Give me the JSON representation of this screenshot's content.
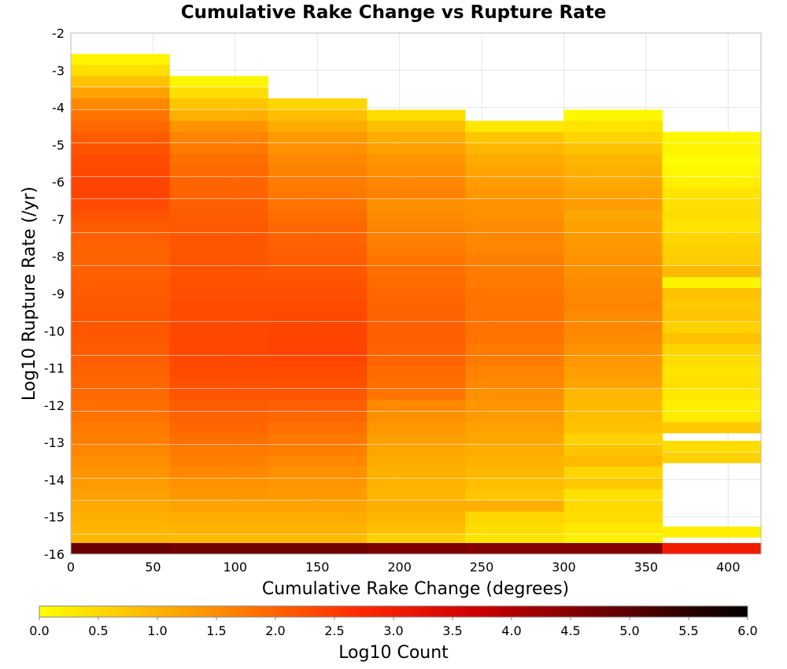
{
  "chart_data": {
    "type": "heatmap",
    "title": "Cumulative Rake Change vs Rupture Rate",
    "xlabel": "Cumulative Rake Change (degrees)",
    "ylabel": "Log10 Rupture Rate (/yr)",
    "xlim": [
      0,
      420
    ],
    "ylim": [
      -16,
      -2
    ],
    "x_ticks": [
      "0",
      "50",
      "100",
      "150",
      "200",
      "250",
      "300",
      "350",
      "400"
    ],
    "y_ticks": [
      "-2",
      "-3",
      "-4",
      "-5",
      "-6",
      "-7",
      "-8",
      "-9",
      "-10",
      "-11",
      "-12",
      "-13",
      "-14",
      "-15",
      "-16"
    ],
    "grid": true,
    "x_bin_width": 60,
    "y_bin_height": 0.2857,
    "colorbar": {
      "label": "Log10 Count",
      "range": [
        0.0,
        6.0
      ],
      "ticks": [
        "0.0",
        "0.5",
        "1.0",
        "1.5",
        "2.0",
        "2.5",
        "3.0",
        "3.5",
        "4.0",
        "4.5",
        "5.0",
        "5.5",
        "6.0"
      ],
      "colors": [
        "#ffff00",
        "#ff8c00",
        "#ff2a00",
        "#cc0000",
        "#000000"
      ]
    },
    "columns": [
      {
        "x_range": [
          0,
          60
        ],
        "cells": [
          [
            -2.7,
            0.15
          ],
          [
            -3.0,
            0.4
          ],
          [
            -3.3,
            0.8
          ],
          [
            -3.6,
            1.2
          ],
          [
            -3.9,
            1.55
          ],
          [
            -4.2,
            1.8
          ],
          [
            -4.5,
            1.95
          ],
          [
            -4.8,
            2.1
          ],
          [
            -5.1,
            2.2
          ],
          [
            -5.4,
            2.28
          ],
          [
            -5.7,
            2.33
          ],
          [
            -6.0,
            2.38
          ],
          [
            -6.3,
            2.4
          ],
          [
            -6.6,
            2.3
          ],
          [
            -6.9,
            2.2
          ],
          [
            -7.2,
            2.1
          ],
          [
            -7.5,
            2.05
          ],
          [
            -7.8,
            2.0
          ],
          [
            -8.1,
            2.0
          ],
          [
            -8.4,
            2.03
          ],
          [
            -8.7,
            2.08
          ],
          [
            -9.0,
            2.1
          ],
          [
            -9.3,
            2.13
          ],
          [
            -9.6,
            2.15
          ],
          [
            -9.9,
            2.15
          ],
          [
            -10.2,
            2.12
          ],
          [
            -10.5,
            2.1
          ],
          [
            -10.8,
            2.05
          ],
          [
            -11.1,
            2.0
          ],
          [
            -11.4,
            1.98
          ],
          [
            -11.7,
            1.92
          ],
          [
            -12.0,
            1.86
          ],
          [
            -12.3,
            1.8
          ],
          [
            -12.6,
            1.72
          ],
          [
            -12.9,
            1.65
          ],
          [
            -13.2,
            1.56
          ],
          [
            -13.5,
            1.48
          ],
          [
            -13.8,
            1.4
          ],
          [
            -14.1,
            1.32
          ],
          [
            -14.4,
            1.22
          ],
          [
            -14.7,
            1.12
          ],
          [
            -15.0,
            1.05
          ],
          [
            -15.3,
            0.98
          ],
          [
            -15.6,
            0.92
          ],
          [
            -15.85,
            4.8
          ]
        ]
      },
      {
        "x_range": [
          60,
          120
        ],
        "cells": [
          [
            -3.3,
            0.15
          ],
          [
            -3.6,
            0.45
          ],
          [
            -3.9,
            0.75
          ],
          [
            -4.2,
            1.05
          ],
          [
            -4.5,
            1.4
          ],
          [
            -4.8,
            1.6
          ],
          [
            -5.1,
            1.75
          ],
          [
            -5.4,
            1.85
          ],
          [
            -5.7,
            1.92
          ],
          [
            -6.0,
            1.98
          ],
          [
            -6.3,
            2.0
          ],
          [
            -6.6,
            2.05
          ],
          [
            -6.9,
            2.1
          ],
          [
            -7.2,
            2.12
          ],
          [
            -7.5,
            2.15
          ],
          [
            -7.8,
            2.15
          ],
          [
            -8.1,
            2.18
          ],
          [
            -8.4,
            2.2
          ],
          [
            -8.7,
            2.22
          ],
          [
            -9.0,
            2.25
          ],
          [
            -9.3,
            2.28
          ],
          [
            -9.6,
            2.3
          ],
          [
            -9.9,
            2.32
          ],
          [
            -10.2,
            2.35
          ],
          [
            -10.5,
            2.35
          ],
          [
            -10.8,
            2.32
          ],
          [
            -11.1,
            2.3
          ],
          [
            -11.4,
            2.25
          ],
          [
            -11.7,
            2.18
          ],
          [
            -12.0,
            2.1
          ],
          [
            -12.3,
            2.02
          ],
          [
            -12.6,
            1.95
          ],
          [
            -12.9,
            1.85
          ],
          [
            -13.2,
            1.75
          ],
          [
            -13.5,
            1.65
          ],
          [
            -13.8,
            1.55
          ],
          [
            -14.1,
            1.45
          ],
          [
            -14.4,
            1.35
          ],
          [
            -14.7,
            1.2
          ],
          [
            -15.0,
            1.1
          ],
          [
            -15.3,
            1.0
          ],
          [
            -15.6,
            0.9
          ],
          [
            -15.85,
            4.7
          ]
        ]
      },
      {
        "x_range": [
          120,
          180
        ],
        "cells": [
          [
            -3.9,
            0.55
          ],
          [
            -4.2,
            0.85
          ],
          [
            -4.5,
            1.1
          ],
          [
            -4.8,
            1.3
          ],
          [
            -5.1,
            1.45
          ],
          [
            -5.4,
            1.55
          ],
          [
            -5.7,
            1.62
          ],
          [
            -6.0,
            1.7
          ],
          [
            -6.3,
            1.75
          ],
          [
            -6.6,
            1.8
          ],
          [
            -6.9,
            1.88
          ],
          [
            -7.2,
            1.95
          ],
          [
            -7.5,
            2.0
          ],
          [
            -7.8,
            2.05
          ],
          [
            -8.1,
            2.1
          ],
          [
            -8.4,
            2.15
          ],
          [
            -8.7,
            2.2
          ],
          [
            -9.0,
            2.25
          ],
          [
            -9.3,
            2.3
          ],
          [
            -9.6,
            2.33
          ],
          [
            -9.9,
            2.36
          ],
          [
            -10.2,
            2.4
          ],
          [
            -10.5,
            2.4
          ],
          [
            -10.8,
            2.36
          ],
          [
            -11.1,
            2.3
          ],
          [
            -11.4,
            2.22
          ],
          [
            -11.7,
            2.15
          ],
          [
            -12.0,
            2.05
          ],
          [
            -12.3,
            1.95
          ],
          [
            -12.6,
            1.85
          ],
          [
            -12.9,
            1.75
          ],
          [
            -13.2,
            1.65
          ],
          [
            -13.5,
            1.55
          ],
          [
            -13.8,
            1.45
          ],
          [
            -14.1,
            1.38
          ],
          [
            -14.4,
            1.3
          ],
          [
            -14.7,
            1.2
          ],
          [
            -15.0,
            1.1
          ],
          [
            -15.3,
            1.0
          ],
          [
            -15.6,
            0.9
          ],
          [
            -15.85,
            4.7
          ]
        ]
      },
      {
        "x_range": [
          180,
          240
        ],
        "cells": [
          [
            -4.2,
            0.45
          ],
          [
            -4.5,
            0.85
          ],
          [
            -4.8,
            1.1
          ],
          [
            -5.1,
            1.25
          ],
          [
            -5.4,
            1.38
          ],
          [
            -5.7,
            1.48
          ],
          [
            -6.0,
            1.55
          ],
          [
            -6.3,
            1.62
          ],
          [
            -6.6,
            1.45
          ],
          [
            -6.9,
            1.5
          ],
          [
            -7.2,
            1.58
          ],
          [
            -7.5,
            1.65
          ],
          [
            -7.8,
            1.72
          ],
          [
            -8.1,
            1.78
          ],
          [
            -8.4,
            1.85
          ],
          [
            -8.7,
            1.9
          ],
          [
            -9.0,
            1.95
          ],
          [
            -9.3,
            2.0
          ],
          [
            -9.6,
            2.02
          ],
          [
            -9.9,
            2.05
          ],
          [
            -10.2,
            2.05
          ],
          [
            -10.5,
            2.02
          ],
          [
            -10.8,
            1.98
          ],
          [
            -11.1,
            1.92
          ],
          [
            -11.4,
            1.85
          ],
          [
            -11.7,
            1.78
          ],
          [
            -12.0,
            1.55
          ],
          [
            -12.3,
            1.45
          ],
          [
            -12.6,
            1.35
          ],
          [
            -12.9,
            1.25
          ],
          [
            -13.2,
            1.18
          ],
          [
            -13.5,
            1.1
          ],
          [
            -13.8,
            1.05
          ],
          [
            -14.1,
            1.0
          ],
          [
            -14.4,
            0.95
          ],
          [
            -14.7,
            1.05
          ],
          [
            -15.0,
            0.95
          ],
          [
            -15.3,
            0.85
          ],
          [
            -15.6,
            0.6
          ],
          [
            -15.85,
            4.6
          ]
        ]
      },
      {
        "x_range": [
          240,
          300
        ],
        "cells": [
          [
            -4.5,
            0.3
          ],
          [
            -4.8,
            0.75
          ],
          [
            -5.1,
            0.95
          ],
          [
            -5.4,
            1.1
          ],
          [
            -5.7,
            1.2
          ],
          [
            -6.0,
            1.28
          ],
          [
            -6.3,
            1.35
          ],
          [
            -6.6,
            1.4
          ],
          [
            -6.9,
            1.45
          ],
          [
            -7.2,
            1.5
          ],
          [
            -7.5,
            1.55
          ],
          [
            -7.8,
            1.6
          ],
          [
            -8.1,
            1.65
          ],
          [
            -8.4,
            1.7
          ],
          [
            -8.7,
            1.75
          ],
          [
            -9.0,
            1.78
          ],
          [
            -9.3,
            1.8
          ],
          [
            -9.6,
            1.82
          ],
          [
            -9.9,
            1.82
          ],
          [
            -10.2,
            1.8
          ],
          [
            -10.5,
            1.75
          ],
          [
            -10.8,
            1.7
          ],
          [
            -11.1,
            1.62
          ],
          [
            -11.4,
            1.55
          ],
          [
            -11.7,
            1.45
          ],
          [
            -12.0,
            1.38
          ],
          [
            -12.3,
            1.3
          ],
          [
            -12.6,
            1.22
          ],
          [
            -12.9,
            1.15
          ],
          [
            -13.2,
            1.08
          ],
          [
            -13.5,
            1.0
          ],
          [
            -13.8,
            0.92
          ],
          [
            -14.1,
            0.85
          ],
          [
            -14.4,
            0.75
          ],
          [
            -14.7,
            1.05
          ],
          [
            -15.0,
            0.55
          ],
          [
            -15.3,
            0.45
          ],
          [
            -15.6,
            0.35
          ],
          [
            -15.85,
            4.5
          ]
        ]
      },
      {
        "x_range": [
          300,
          360
        ],
        "cells": [
          [
            -4.2,
            0.1
          ],
          [
            -4.5,
            0.35
          ],
          [
            -4.8,
            0.55
          ],
          [
            -5.1,
            0.8
          ],
          [
            -5.4,
            0.95
          ],
          [
            -5.7,
            1.05
          ],
          [
            -6.0,
            1.12
          ],
          [
            -6.3,
            1.2
          ],
          [
            -6.6,
            1.28
          ],
          [
            -6.9,
            1.15
          ],
          [
            -7.2,
            1.22
          ],
          [
            -7.5,
            1.3
          ],
          [
            -7.8,
            1.35
          ],
          [
            -8.1,
            1.4
          ],
          [
            -8.4,
            1.45
          ],
          [
            -8.7,
            1.5
          ],
          [
            -9.0,
            1.55
          ],
          [
            -9.3,
            1.58
          ],
          [
            -9.6,
            1.5
          ],
          [
            -9.9,
            1.55
          ],
          [
            -10.2,
            1.5
          ],
          [
            -10.5,
            1.42
          ],
          [
            -10.8,
            1.35
          ],
          [
            -11.1,
            1.28
          ],
          [
            -11.4,
            1.2
          ],
          [
            -11.7,
            0.95
          ],
          [
            -12.0,
            0.9
          ],
          [
            -12.3,
            0.85
          ],
          [
            -12.6,
            0.8
          ],
          [
            -12.9,
            0.6
          ],
          [
            -13.2,
            0.75
          ],
          [
            -13.5,
            0.9
          ],
          [
            -13.8,
            0.55
          ],
          [
            -14.1,
            0.7
          ],
          [
            -14.4,
            0.4
          ],
          [
            -14.7,
            0.5
          ],
          [
            -15.0,
            0.45
          ],
          [
            -15.3,
            0.3
          ],
          [
            -15.6,
            0.2
          ],
          [
            -15.85,
            4.5
          ]
        ]
      },
      {
        "x_range": [
          360,
          420
        ],
        "cells": [
          [
            -4.8,
            0.1
          ],
          [
            -5.1,
            0.15
          ],
          [
            -5.4,
            0.05
          ],
          [
            -5.7,
            0.1
          ],
          [
            -6.0,
            0.2
          ],
          [
            -6.3,
            0.35
          ],
          [
            -6.6,
            0.4
          ],
          [
            -6.9,
            0.45
          ],
          [
            -7.2,
            0.35
          ],
          [
            -7.5,
            0.55
          ],
          [
            -7.8,
            0.6
          ],
          [
            -8.1,
            0.65
          ],
          [
            -8.4,
            0.9
          ],
          [
            -8.7,
            0.15
          ],
          [
            -9.0,
            0.8
          ],
          [
            -9.3,
            0.7
          ],
          [
            -9.6,
            0.75
          ],
          [
            -9.9,
            0.6
          ],
          [
            -10.2,
            0.8
          ],
          [
            -10.5,
            0.55
          ],
          [
            -10.8,
            0.45
          ],
          [
            -11.1,
            0.35
          ],
          [
            -11.4,
            0.4
          ],
          [
            -11.7,
            0.3
          ],
          [
            -12.0,
            0.2
          ],
          [
            -12.3,
            0.25
          ],
          [
            -12.6,
            0.7
          ],
          [
            -13.1,
            0.45
          ],
          [
            -13.4,
            0.6
          ],
          [
            -15.4,
            0.2
          ],
          [
            -15.85,
            3.0
          ]
        ]
      }
    ]
  }
}
